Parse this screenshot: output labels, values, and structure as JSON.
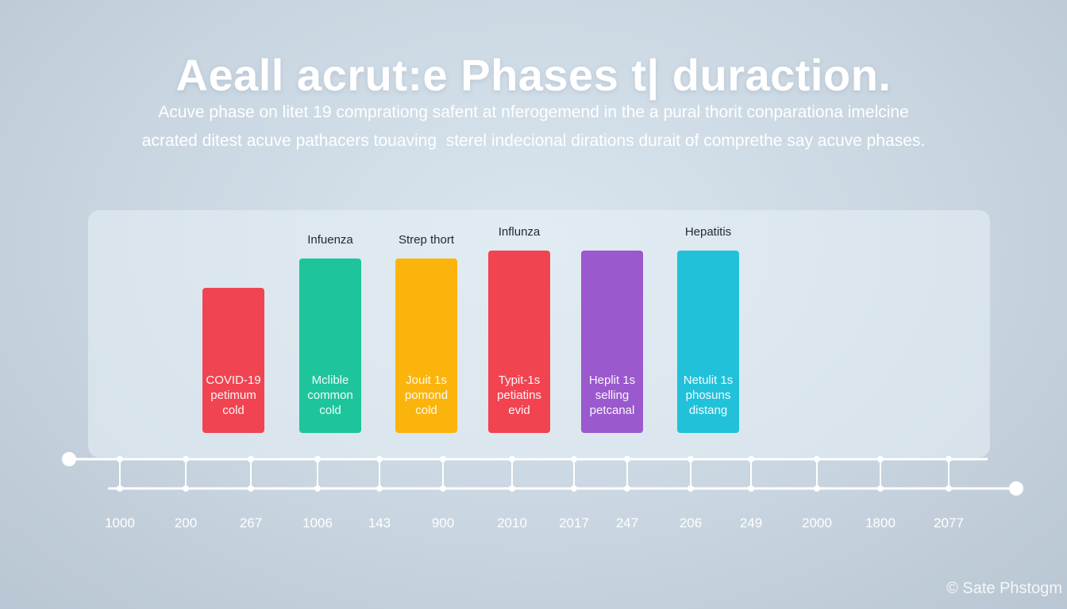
{
  "header": {
    "title": "Aeall acrut:e Phases t| duraction.",
    "subtitle_line1": "Acuve phase on litet 19 comprationg safent at nferogemend in the a pural thorit conparationa imelcine",
    "subtitle_line2": "acrated ditest acuve pathacers touaving  sterel indecional dirations durait of comprethe say acuve phases."
  },
  "chart_data": {
    "type": "bar",
    "title": "Aeall acrut:e Phases t| duraction.",
    "bars": [
      {
        "inner_label": [
          "COVID-19",
          "petimum",
          "cold"
        ],
        "top_label": "",
        "color": "#f04452",
        "value": 0.73
      },
      {
        "inner_label": [
          "Mclible",
          "common",
          "cold"
        ],
        "top_label": "Infuenza",
        "color": "#1ec49c",
        "value": 0.88
      },
      {
        "inner_label": [
          "Jouit 1s",
          "pomond",
          "cold"
        ],
        "top_label": "Strep thort",
        "color": "#fbb40b",
        "value": 0.88
      },
      {
        "inner_label": [
          "Typit-1s",
          "petiatins",
          "evid"
        ],
        "top_label": "Influnza",
        "color": "#f24350",
        "value": 0.92
      },
      {
        "inner_label": [
          "Heplit 1s",
          "selling",
          "petcanal"
        ],
        "top_label": "",
        "color": "#9a59cc",
        "value": 0.92
      },
      {
        "inner_label": [
          "Netulit 1s",
          "phosuns",
          "distang"
        ],
        "top_label": "Hepatitis",
        "color": "#22c1da",
        "value": 0.92
      }
    ],
    "x_ticks": [
      "1000",
      "200",
      "267",
      "1006",
      "143",
      "900",
      "2010",
      "2017",
      "247",
      "206",
      "249",
      "2000",
      "1800",
      "2077"
    ],
    "grid": false,
    "legend": "none"
  },
  "watermark": "© Sate Phstogm",
  "colors": {
    "axis": "#ffffff"
  }
}
